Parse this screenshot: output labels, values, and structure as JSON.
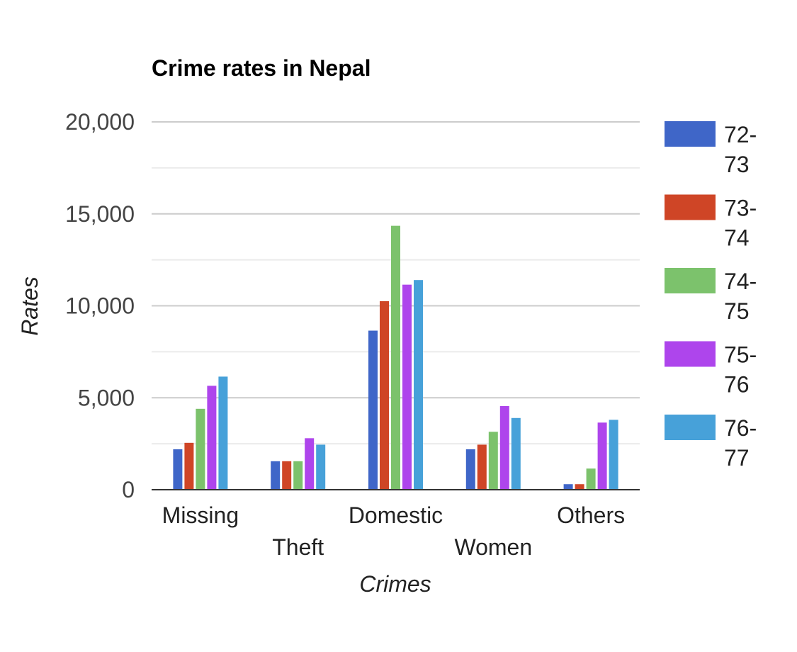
{
  "chart_data": {
    "type": "bar",
    "title": "Crime rates in Nepal",
    "xlabel": "Crimes",
    "ylabel": "Rates",
    "ylim": [
      0,
      20000
    ],
    "yticks": [
      0,
      5000,
      10000,
      15000,
      20000
    ],
    "ytick_labels": [
      "0",
      "5,000",
      "10,000",
      "15,000",
      "20,000"
    ],
    "grid": true,
    "legend_position": "right",
    "categories": [
      "Missing",
      "Theft",
      "Domestic",
      "Women",
      "Others"
    ],
    "series": [
      {
        "name": "72-73",
        "name_lines": [
          "72-",
          "73"
        ],
        "color": "#3f66c8",
        "values": [
          2200,
          1550,
          8650,
          2200,
          300
        ]
      },
      {
        "name": "73-74",
        "name_lines": [
          "73-",
          "74"
        ],
        "color": "#cf4526",
        "values": [
          2550,
          1550,
          10250,
          2450,
          300
        ]
      },
      {
        "name": "74-75",
        "name_lines": [
          "74-",
          "75"
        ],
        "color": "#7cc26c",
        "values": [
          4400,
          1550,
          14350,
          3150,
          1150
        ]
      },
      {
        "name": "75-76",
        "name_lines": [
          "75-",
          "76"
        ],
        "color": "#ae45ec",
        "values": [
          5650,
          2800,
          11150,
          4550,
          3650
        ]
      },
      {
        "name": "76-77",
        "name_lines": [
          "76-",
          "77"
        ],
        "color": "#47a1d9",
        "values": [
          6150,
          2450,
          11400,
          3900,
          3800
        ]
      }
    ],
    "colors": {
      "gridline": "#cccccc",
      "minor_gridline": "#ebebeb",
      "baseline": "#333333"
    }
  }
}
